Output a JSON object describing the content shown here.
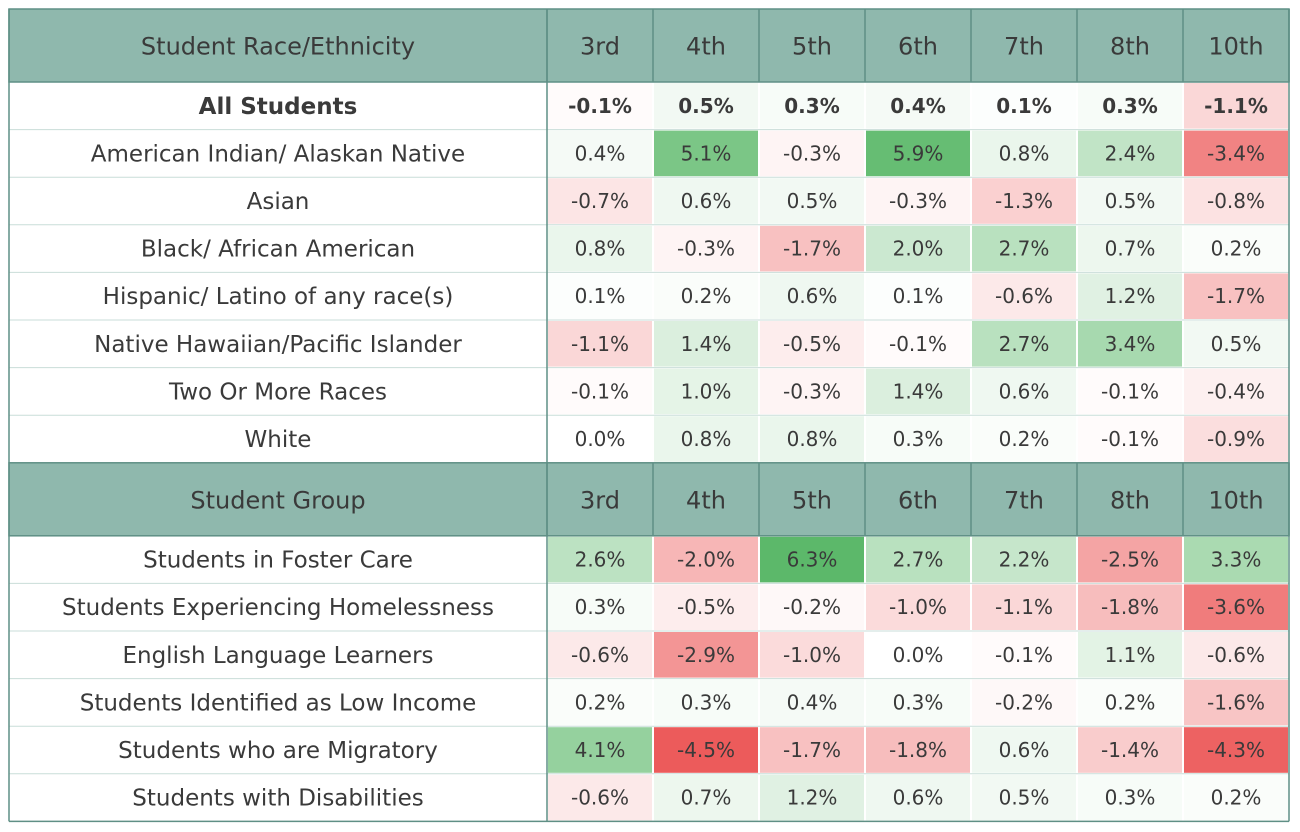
{
  "colors": {
    "header_bg": "#8fb8ad",
    "grid": "#5f8f85",
    "row_border": "#c9ddd8",
    "positive_max": "#5cb86a",
    "negative_max": "#ec5b5b",
    "neutral": "#ffffff"
  },
  "chart_data": {
    "type": "heatmap",
    "color_scale": {
      "min": -4.5,
      "max": 6.3,
      "mid": 0
    },
    "columns": [
      "3rd",
      "4th",
      "5th",
      "6th",
      "7th",
      "8th",
      "10th"
    ],
    "sections": [
      {
        "header": "Student Race/Ethnicity",
        "rows": [
          {
            "label": "All Students",
            "bold": true,
            "values": [
              "-0.1%",
              "0.5%",
              "0.3%",
              "0.4%",
              "0.1%",
              "0.3%",
              "-1.1%"
            ],
            "nums": [
              -0.1,
              0.5,
              0.3,
              0.4,
              0.1,
              0.3,
              -1.1
            ]
          },
          {
            "label": "American Indian/ Alaskan Native",
            "values": [
              "0.4%",
              "5.1%",
              "-0.3%",
              "5.9%",
              "0.8%",
              "2.4%",
              "-3.4%"
            ],
            "nums": [
              0.4,
              5.1,
              -0.3,
              5.9,
              0.8,
              2.4,
              -3.4
            ]
          },
          {
            "label": "Asian",
            "values": [
              "-0.7%",
              "0.6%",
              "0.5%",
              "-0.3%",
              "-1.3%",
              "0.5%",
              "-0.8%"
            ],
            "nums": [
              -0.7,
              0.6,
              0.5,
              -0.3,
              -1.3,
              0.5,
              -0.8
            ]
          },
          {
            "label": "Black/ African American",
            "values": [
              "0.8%",
              "-0.3%",
              "-1.7%",
              "2.0%",
              "2.7%",
              "0.7%",
              "0.2%"
            ],
            "nums": [
              0.8,
              -0.3,
              -1.7,
              2.0,
              2.7,
              0.7,
              0.2
            ]
          },
          {
            "label": "Hispanic/ Latino of any race(s)",
            "values": [
              "0.1%",
              "0.2%",
              "0.6%",
              "0.1%",
              "-0.6%",
              "1.2%",
              "-1.7%"
            ],
            "nums": [
              0.1,
              0.2,
              0.6,
              0.1,
              -0.6,
              1.2,
              -1.7
            ]
          },
          {
            "label": "Native Hawaiian/Pacific Islander",
            "values": [
              "-1.1%",
              "1.4%",
              "-0.5%",
              "-0.1%",
              "2.7%",
              "3.4%",
              "0.5%"
            ],
            "nums": [
              -1.1,
              1.4,
              -0.5,
              -0.1,
              2.7,
              3.4,
              0.5
            ]
          },
          {
            "label": "Two Or More Races",
            "values": [
              "-0.1%",
              "1.0%",
              "-0.3%",
              "1.4%",
              "0.6%",
              "-0.1%",
              "-0.4%"
            ],
            "nums": [
              -0.1,
              1.0,
              -0.3,
              1.4,
              0.6,
              -0.1,
              -0.4
            ]
          },
          {
            "label": "White",
            "values": [
              "0.0%",
              "0.8%",
              "0.8%",
              "0.3%",
              "0.2%",
              "-0.1%",
              "-0.9%"
            ],
            "nums": [
              0.0,
              0.8,
              0.8,
              0.3,
              0.2,
              -0.1,
              -0.9
            ]
          }
        ]
      },
      {
        "header": "Student Group",
        "rows": [
          {
            "label": "Students in Foster Care",
            "values": [
              "2.6%",
              "-2.0%",
              "6.3%",
              "2.7%",
              "2.2%",
              "-2.5%",
              "3.3%"
            ],
            "nums": [
              2.6,
              -2.0,
              6.3,
              2.7,
              2.2,
              -2.5,
              3.3
            ]
          },
          {
            "label": "Students Experiencing Homelessness",
            "values": [
              "0.3%",
              "-0.5%",
              "-0.2%",
              "-1.0%",
              "-1.1%",
              "-1.8%",
              "-3.6%"
            ],
            "nums": [
              0.3,
              -0.5,
              -0.2,
              -1.0,
              -1.1,
              -1.8,
              -3.6
            ]
          },
          {
            "label": "English Language Learners",
            "values": [
              "-0.6%",
              "-2.9%",
              "-1.0%",
              "0.0%",
              "-0.1%",
              "1.1%",
              "-0.6%"
            ],
            "nums": [
              -0.6,
              -2.9,
              -1.0,
              0.0,
              -0.1,
              1.1,
              -0.6
            ]
          },
          {
            "label": "Students Identified as Low Income",
            "values": [
              "0.2%",
              "0.3%",
              "0.4%",
              "0.3%",
              "-0.2%",
              "0.2%",
              "-1.6%"
            ],
            "nums": [
              0.2,
              0.3,
              0.4,
              0.3,
              -0.2,
              0.2,
              -1.6
            ]
          },
          {
            "label": "Students who are Migratory",
            "values": [
              "4.1%",
              "-4.5%",
              "-1.7%",
              "-1.8%",
              "0.6%",
              "-1.4%",
              "-4.3%"
            ],
            "nums": [
              4.1,
              -4.5,
              -1.7,
              -1.8,
              0.6,
              -1.4,
              -4.3
            ]
          },
          {
            "label": "Students with Disabilities",
            "values": [
              "-0.6%",
              "0.7%",
              "1.2%",
              "0.6%",
              "0.5%",
              "0.3%",
              "0.2%"
            ],
            "nums": [
              -0.6,
              0.7,
              1.2,
              0.6,
              0.5,
              0.3,
              0.2
            ]
          }
        ]
      }
    ]
  }
}
